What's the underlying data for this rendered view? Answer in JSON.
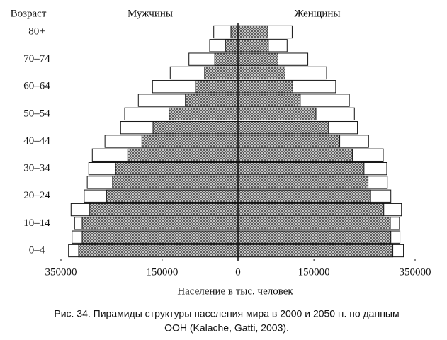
{
  "chart_data": {
    "type": "pyramid",
    "y_label": "Возраст",
    "left_title": "Мужчины",
    "right_title": "Женщины",
    "x_label": "Население в тыс. человек",
    "caption": [
      "Рис. 34. Пирамиды структуры населения мира в 2000 и 2050 гг. по данным",
      "ООН (Kalache, Gatti, 2003)."
    ],
    "categories": [
      "0–4",
      null,
      "10–14",
      null,
      "20–24",
      null,
      "30–34",
      null,
      "40–44",
      null,
      "50–54",
      null,
      "60–64",
      null,
      "70–74",
      null,
      "80+"
    ],
    "xlim": [
      -350000,
      350000
    ],
    "xticks": [
      {
        "value": -350000,
        "label": "350000"
      },
      {
        "value": -150000,
        "label": "150000"
      },
      0,
      150000,
      350000
    ],
    "series": [
      {
        "side": "left",
        "fill": "white",
        "values": [
          335000,
          328000,
          323000,
          330000,
          304000,
          298000,
          295000,
          288000,
          263000,
          232000,
          224000,
          197000,
          169000,
          134000,
          97000,
          56000,
          48000
        ]
      },
      {
        "side": "left",
        "fill": "hatched",
        "values": [
          315000,
          308000,
          308000,
          293000,
          260000,
          248000,
          242000,
          218000,
          190000,
          168000,
          136000,
          104000,
          84000,
          66000,
          46000,
          25000,
          14000
        ]
      },
      {
        "side": "right",
        "fill": "white",
        "values": [
          327000,
          320000,
          319000,
          323000,
          302000,
          295000,
          294000,
          287000,
          258000,
          236000,
          230000,
          220000,
          193000,
          175000,
          138000,
          97000,
          107000
        ]
      },
      {
        "side": "right",
        "fill": "hatched",
        "values": [
          306000,
          302000,
          301000,
          288000,
          262000,
          257000,
          249000,
          226000,
          201000,
          179000,
          154000,
          123000,
          108000,
          93000,
          79000,
          60000,
          59000
        ]
      }
    ]
  }
}
